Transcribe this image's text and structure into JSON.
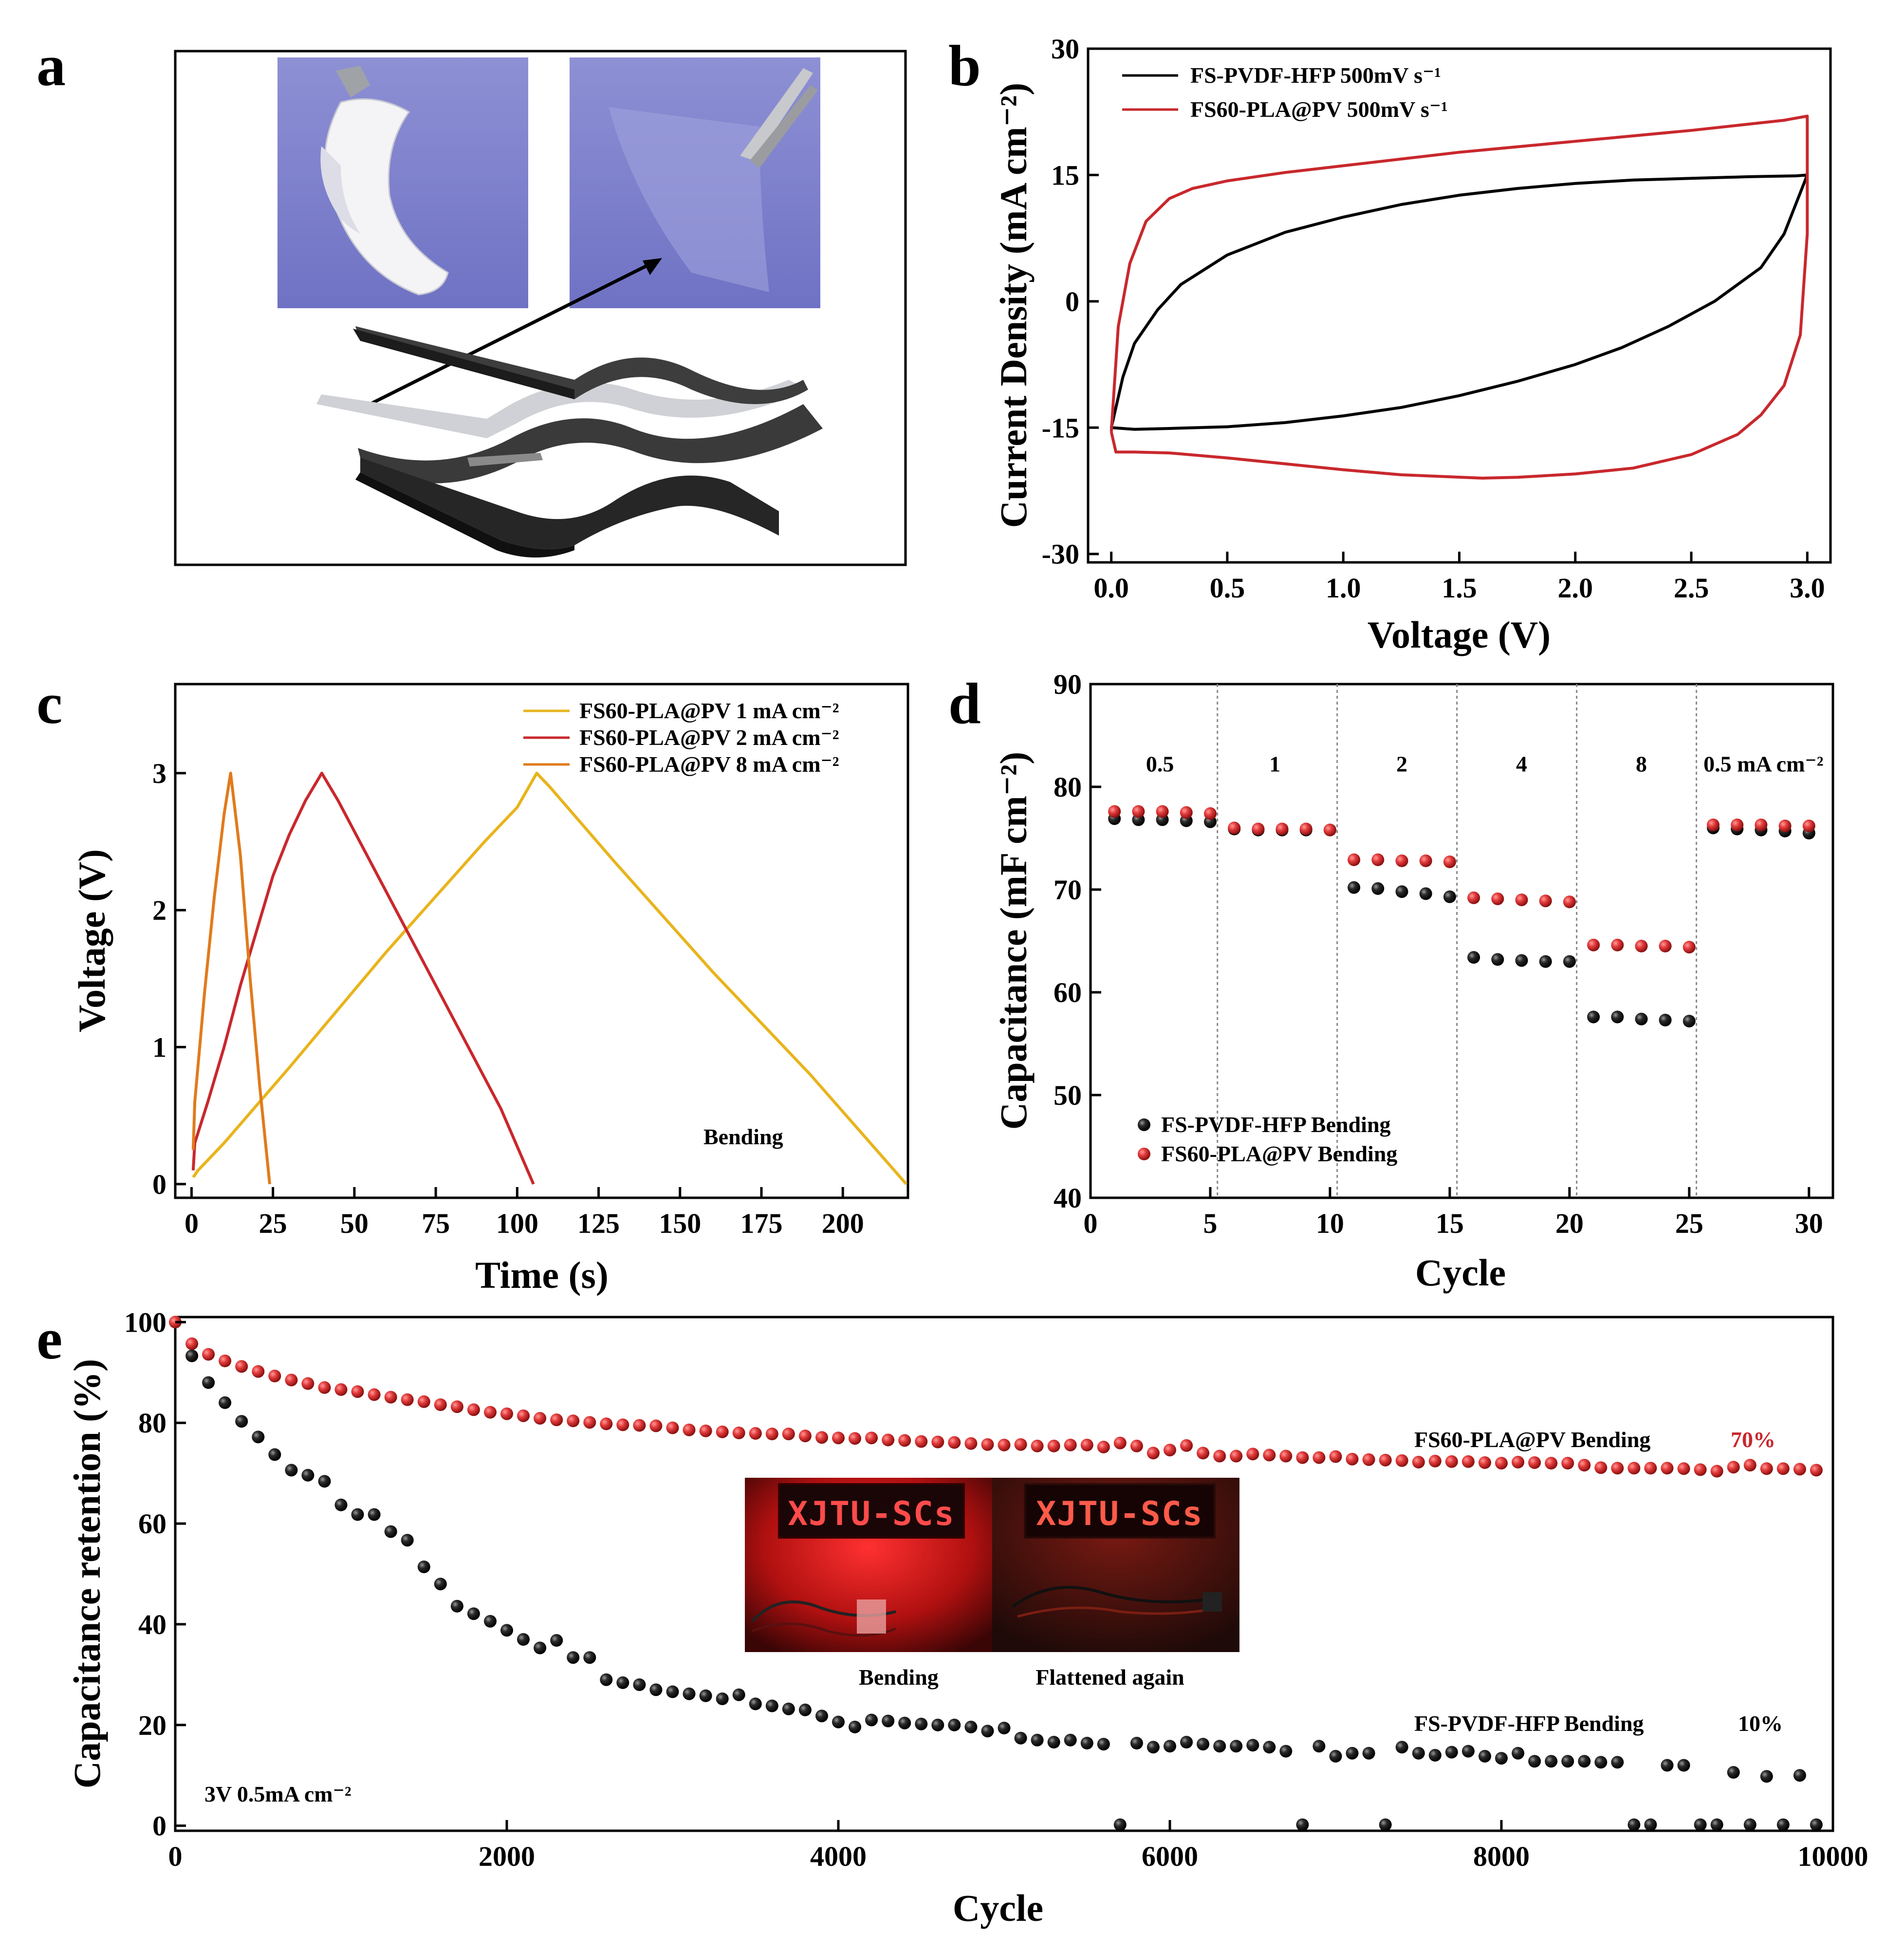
{
  "figure": {
    "panel_labels": [
      "a",
      "b",
      "c",
      "d",
      "e"
    ]
  },
  "photo_a": {
    "description_icon": "flexible-supercapacitor-photo-icon"
  },
  "colors": {
    "black_series": "#000000",
    "red_series": "#c8282d",
    "yellow_series": "#e8b41c",
    "orange_series": "#e07b1c"
  },
  "chart_data": [
    {
      "panel": "b",
      "type": "line",
      "title": "",
      "xlabel": "Voltage (V)",
      "ylabel": "Current Density (mA cm⁻²)",
      "xlim": [
        -0.1,
        3.1
      ],
      "ylim": [
        -31,
        30
      ],
      "xticks": [
        0.0,
        0.5,
        1.0,
        1.5,
        2.0,
        2.5,
        3.0
      ],
      "xtick_labels": [
        "0.0",
        "0.5",
        "1.0",
        "1.5",
        "2.0",
        "2.5",
        "3.0"
      ],
      "yticks": [
        -30,
        -15,
        0,
        15,
        30
      ],
      "ytick_labels": [
        "-30",
        "-15",
        "0",
        "15",
        "30"
      ],
      "legend_position": "top-left",
      "series": [
        {
          "name": "FS-PVDF-HFP 500mV s⁻¹",
          "color": "#000000",
          "x": [
            0.0,
            0.05,
            0.1,
            0.2,
            0.3,
            0.5,
            0.75,
            1.0,
            1.25,
            1.5,
            1.75,
            2.0,
            2.25,
            2.5,
            2.75,
            2.95,
            3.0,
            2.9,
            2.8,
            2.6,
            2.4,
            2.2,
            2.0,
            1.75,
            1.5,
            1.25,
            1.0,
            0.75,
            0.5,
            0.25,
            0.1,
            0.0
          ],
          "y": [
            -15.0,
            -9.0,
            -5.0,
            -1.0,
            2.0,
            5.5,
            8.2,
            10.0,
            11.5,
            12.6,
            13.4,
            14.0,
            14.4,
            14.6,
            14.8,
            14.9,
            15.0,
            8.0,
            4.0,
            0.0,
            -3.0,
            -5.5,
            -7.5,
            -9.5,
            -11.2,
            -12.6,
            -13.6,
            -14.4,
            -14.9,
            -15.1,
            -15.2,
            -15.0
          ]
        },
        {
          "name": "FS60-PLA@PV 500mV s⁻¹",
          "color": "#c8282d",
          "x": [
            0.0,
            0.03,
            0.08,
            0.15,
            0.25,
            0.35,
            0.5,
            0.75,
            1.0,
            1.5,
            2.0,
            2.5,
            2.9,
            3.0,
            3.0,
            2.97,
            2.9,
            2.8,
            2.7,
            2.5,
            2.25,
            2.0,
            1.75,
            1.6,
            1.25,
            1.0,
            0.75,
            0.5,
            0.25,
            0.1,
            0.02,
            0.0
          ],
          "y": [
            -15.5,
            -3.0,
            4.5,
            9.5,
            12.2,
            13.4,
            14.3,
            15.3,
            16.1,
            17.7,
            19.0,
            20.3,
            21.5,
            22.0,
            8.0,
            -4.0,
            -10.0,
            -13.5,
            -15.8,
            -18.2,
            -19.8,
            -20.5,
            -20.9,
            -21.0,
            -20.6,
            -20.0,
            -19.3,
            -18.6,
            -18.0,
            -17.9,
            -17.9,
            -15.5
          ]
        }
      ]
    },
    {
      "panel": "c",
      "type": "line",
      "title": "",
      "xlabel": "Time (s)",
      "ylabel": "Voltage (V)",
      "xlim": [
        -5,
        220
      ],
      "ylim": [
        -0.1,
        3.65
      ],
      "xticks": [
        0,
        25,
        50,
        75,
        100,
        125,
        150,
        175,
        200
      ],
      "xtick_labels": [
        "0",
        "25",
        "50",
        "75",
        "100",
        "125",
        "150",
        "175",
        "200"
      ],
      "yticks": [
        0,
        1,
        2,
        3
      ],
      "ytick_labels": [
        "0",
        "1",
        "2",
        "3"
      ],
      "legend_position": "top-right",
      "annotation": "Bending",
      "series": [
        {
          "name": "FS60-PLA@PV 1 mA cm⁻²",
          "color": "#e8b41c",
          "x": [
            0.5,
            2,
            10,
            30,
            60,
            90,
            100,
            106,
            110,
            130,
            160,
            190,
            219.5
          ],
          "y": [
            0.05,
            0.1,
            0.3,
            0.85,
            1.7,
            2.5,
            2.75,
            3.0,
            2.9,
            2.35,
            1.55,
            0.8,
            0.0
          ]
        },
        {
          "name": "FS60-PLA@PV 2 mA cm⁻²",
          "color": "#c8282d",
          "x": [
            0.5,
            1,
            5,
            10,
            15,
            20,
            25,
            30,
            35,
            40,
            45,
            55,
            65,
            75,
            85,
            95,
            105
          ],
          "y": [
            0.1,
            0.3,
            0.6,
            1.0,
            1.45,
            1.85,
            2.25,
            2.55,
            2.8,
            3.0,
            2.8,
            2.35,
            1.9,
            1.45,
            1.0,
            0.55,
            0.0
          ]
        },
        {
          "name": "FS60-PLA@PV 8 mA cm⁻²",
          "color": "#e07b1c",
          "x": [
            0.5,
            1,
            4,
            7,
            10,
            12,
            15,
            18,
            21,
            24
          ],
          "y": [
            0.25,
            0.6,
            1.4,
            2.1,
            2.7,
            3.0,
            2.4,
            1.5,
            0.7,
            0.0
          ]
        }
      ]
    },
    {
      "panel": "d",
      "type": "scatter",
      "title": "",
      "xlabel": "Cycle",
      "ylabel": "Capacitance (mF cm⁻²)",
      "xlim": [
        0,
        31
      ],
      "ylim": [
        40,
        90
      ],
      "xticks": [
        0,
        5,
        10,
        15,
        20,
        25,
        30
      ],
      "xtick_labels": [
        "0",
        "5",
        "10",
        "15",
        "20",
        "25",
        "30"
      ],
      "yticks": [
        40,
        50,
        60,
        70,
        80,
        90
      ],
      "ytick_labels": [
        "40",
        "50",
        "60",
        "70",
        "80",
        "90"
      ],
      "segment_dividers": [
        5.3,
        10.3,
        15.3,
        20.3,
        25.3
      ],
      "segment_labels": [
        {
          "x": 2.9,
          "text": "0.5"
        },
        {
          "x": 7.7,
          "text": "1"
        },
        {
          "x": 13.0,
          "text": "2"
        },
        {
          "x": 18.0,
          "text": "4"
        },
        {
          "x": 23.0,
          "text": "8"
        },
        {
          "x": 28.1,
          "text": "0.5 mA cm⁻²"
        }
      ],
      "legend_position": "bottom-left",
      "series": [
        {
          "name": "FS-PVDF-HFP Bending",
          "color": "#000000",
          "x": [
            1,
            2,
            3,
            4,
            5,
            6,
            7,
            8,
            9,
            10,
            11,
            12,
            13,
            14,
            15,
            16,
            17,
            18,
            19,
            20,
            21,
            22,
            23,
            24,
            25,
            26,
            27,
            28,
            29,
            30
          ],
          "y": [
            76.9,
            76.8,
            76.8,
            76.7,
            76.6,
            75.9,
            75.8,
            75.8,
            75.8,
            75.8,
            70.2,
            70.1,
            69.8,
            69.6,
            69.3,
            63.4,
            63.2,
            63.1,
            63.0,
            63.0,
            57.6,
            57.6,
            57.4,
            57.3,
            57.2,
            76.0,
            75.9,
            75.8,
            75.7,
            75.5
          ]
        },
        {
          "name": "FS60-PLA@PV Bending",
          "color": "#c8282d",
          "x": [
            1,
            2,
            3,
            4,
            5,
            6,
            7,
            8,
            9,
            10,
            11,
            12,
            13,
            14,
            15,
            16,
            17,
            18,
            19,
            20,
            21,
            22,
            23,
            24,
            25,
            26,
            27,
            28,
            29,
            30
          ],
          "y": [
            77.6,
            77.6,
            77.6,
            77.5,
            77.4,
            76.0,
            75.9,
            75.9,
            75.9,
            75.8,
            72.9,
            72.9,
            72.8,
            72.8,
            72.7,
            69.2,
            69.1,
            69.0,
            68.9,
            68.8,
            64.6,
            64.6,
            64.5,
            64.5,
            64.4,
            76.3,
            76.3,
            76.3,
            76.2,
            76.2
          ]
        }
      ]
    },
    {
      "panel": "e",
      "type": "scatter",
      "title": "",
      "xlabel": "Cycle",
      "ylabel": "Capacitance retention (%)",
      "xlim": [
        0,
        10000
      ],
      "ylim": [
        -1,
        101
      ],
      "xticks": [
        0,
        2000,
        4000,
        6000,
        8000,
        10000
      ],
      "xtick_labels": [
        "0",
        "2000",
        "4000",
        "6000",
        "8000",
        "10000"
      ],
      "yticks": [
        0,
        20,
        40,
        60,
        80,
        100
      ],
      "ytick_labels": [
        "0",
        "20",
        "40",
        "60",
        "80",
        "100"
      ],
      "condition_label": "3V 0.5mA cm⁻²",
      "inset_captions": [
        "Bending",
        "Flattened again"
      ],
      "inset_sign_text": "XJTU-SCs",
      "series": [
        {
          "name": "FS60-PLA@PV Bending",
          "end_label": "70%",
          "color": "#c8282d",
          "x": [
            0,
            100,
            200,
            300,
            400,
            500,
            600,
            700,
            800,
            900,
            1000,
            1100,
            1200,
            1300,
            1400,
            1500,
            1600,
            1700,
            1800,
            1900,
            2000,
            2100,
            2200,
            2300,
            2400,
            2500,
            2600,
            2700,
            2800,
            2900,
            3000,
            3100,
            3200,
            3300,
            3400,
            3500,
            3600,
            3700,
            3800,
            3900,
            4000,
            4100,
            4200,
            4300,
            4400,
            4500,
            4600,
            4700,
            4800,
            4900,
            5000,
            5100,
            5200,
            5300,
            5400,
            5500,
            5600,
            5700,
            5800,
            5900,
            6000,
            6100,
            6200,
            6300,
            6400,
            6500,
            6600,
            6700,
            6800,
            6900,
            7000,
            7100,
            7200,
            7300,
            7400,
            7500,
            7600,
            7700,
            7800,
            7900,
            8000,
            8100,
            8200,
            8300,
            8400,
            8500,
            8600,
            8700,
            8800,
            8900,
            9000,
            9100,
            9200,
            9300,
            9400,
            9500,
            9600,
            9700,
            9800,
            9900
          ],
          "y": [
            100,
            95.7,
            93.6,
            92.3,
            91.2,
            90.2,
            89.3,
            88.5,
            87.8,
            87.0,
            86.6,
            86.2,
            85.6,
            85.1,
            84.6,
            84.2,
            83.6,
            83.2,
            82.6,
            82.1,
            81.8,
            81.4,
            80.9,
            80.6,
            80.4,
            80.1,
            79.8,
            79.6,
            79.5,
            79.4,
            79.0,
            78.6,
            78.4,
            78.2,
            78.0,
            77.9,
            77.8,
            77.8,
            77.4,
            77.1,
            77.0,
            76.9,
            77.0,
            76.6,
            76.5,
            76.3,
            76.2,
            76.1,
            75.9,
            75.7,
            75.6,
            75.7,
            75.4,
            75.4,
            75.6,
            75.6,
            75.2,
            76.0,
            75.4,
            74.0,
            74.6,
            75.5,
            74.0,
            73.4,
            73.4,
            73.8,
            73.6,
            73.4,
            73.1,
            73.1,
            73.3,
            72.8,
            72.7,
            72.6,
            72.5,
            72.2,
            72.4,
            72.3,
            72.3,
            72.1,
            72.0,
            72.2,
            72.1,
            72.0,
            72.0,
            71.6,
            71.1,
            71.0,
            71.0,
            71.0,
            71.0,
            70.9,
            70.7,
            70.4,
            71.2,
            71.6,
            70.9,
            70.9,
            70.8,
            70.6
          ]
        },
        {
          "name": "FS-PVDF-HFP Bending",
          "end_label": "10%",
          "color": "#000000",
          "x": [
            100,
            200,
            300,
            400,
            500,
            600,
            700,
            800,
            900,
            1000,
            1100,
            1200,
            1300,
            1400,
            1500,
            1600,
            1700,
            1800,
            1900,
            2000,
            2100,
            2200,
            2300,
            2400,
            2500,
            2600,
            2700,
            2800,
            2900,
            3000,
            3100,
            3200,
            3300,
            3400,
            3500,
            3600,
            3700,
            3800,
            3900,
            4000,
            4100,
            4200,
            4300,
            4400,
            4500,
            4600,
            4700,
            4800,
            4900,
            5000,
            5100,
            5200,
            5300,
            5400,
            5500,
            5600,
            5700,
            5800,
            5900,
            6000,
            6100,
            6200,
            6300,
            6400,
            6500,
            6600,
            6700,
            6800,
            6900,
            7000,
            7100,
            7200,
            7300,
            7400,
            7500,
            7600,
            7700,
            7800,
            7900,
            8000,
            8100,
            8200,
            8300,
            8400,
            8500,
            8600,
            8700,
            8800,
            8900,
            9000,
            9100,
            9200,
            9300,
            9400,
            9500,
            9600,
            9700,
            9800,
            9900
          ],
          "y": [
            93.3,
            88.0,
            84.0,
            80.3,
            77.2,
            73.7,
            70.6,
            69.6,
            68.4,
            63.7,
            61.8,
            61.8,
            58.4,
            56.7,
            51.4,
            48.0,
            43.6,
            42.1,
            40.6,
            38.8,
            37.0,
            35.3,
            36.8,
            33.4,
            33.4,
            29.0,
            28.4,
            28.0,
            27.0,
            26.6,
            26.2,
            25.8,
            25.2,
            26.0,
            24.2,
            23.8,
            23.2,
            23.0,
            21.8,
            20.6,
            19.6,
            21.0,
            20.8,
            20.4,
            20.2,
            20.0,
            20.0,
            19.6,
            18.8,
            19.4,
            17.4,
            17.0,
            16.6,
            17.0,
            16.4,
            16.2,
            0.2,
            16.4,
            15.6,
            15.8,
            16.6,
            16.2,
            15.8,
            15.8,
            16.0,
            15.6,
            14.8,
            0.2,
            15.8,
            13.8,
            14.4,
            14.4,
            0.2,
            15.6,
            14.4,
            14.0,
            14.6,
            14.8,
            13.8,
            13.4,
            14.4,
            12.8,
            12.8,
            12.8,
            12.8,
            12.6,
            12.6,
            0.2,
            0.2,
            12.0,
            12.0,
            0.2,
            0.2,
            10.6,
            0.2,
            9.8,
            0.2,
            10.0,
            0.2
          ]
        }
      ]
    }
  ]
}
